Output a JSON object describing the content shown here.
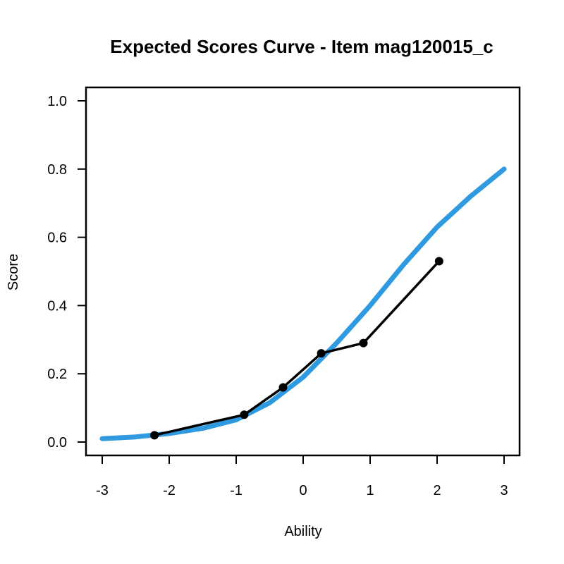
{
  "chart_data": {
    "type": "line",
    "title": "Expected Scores Curve - Item  mag120015_c",
    "xlabel": "Ability",
    "ylabel": "Score",
    "xlim": [
      -3,
      3
    ],
    "ylim": [
      0,
      1
    ],
    "xticks": [
      "-3",
      "-2",
      "-1",
      "0",
      "1",
      "2",
      "3"
    ],
    "yticks": [
      "0.0",
      "0.2",
      "0.4",
      "0.6",
      "0.8",
      "1.0"
    ],
    "grid": false,
    "legend": "none",
    "series": [
      {
        "kind": "model-curve",
        "color": "#2f9ae0",
        "x": [
          -3.0,
          -2.5,
          -2.0,
          -1.5,
          -1.0,
          -0.5,
          0.0,
          0.5,
          1.0,
          1.5,
          2.0,
          2.5,
          3.0
        ],
        "y": [
          0.01,
          0.015,
          0.025,
          0.04,
          0.065,
          0.115,
          0.19,
          0.29,
          0.4,
          0.52,
          0.63,
          0.72,
          0.8
        ]
      },
      {
        "kind": "observed",
        "color": "#000000",
        "x": [
          -2.22,
          -0.88,
          -0.3,
          0.27,
          0.9,
          2.03
        ],
        "y": [
          0.02,
          0.08,
          0.16,
          0.26,
          0.29,
          0.53
        ]
      }
    ]
  }
}
